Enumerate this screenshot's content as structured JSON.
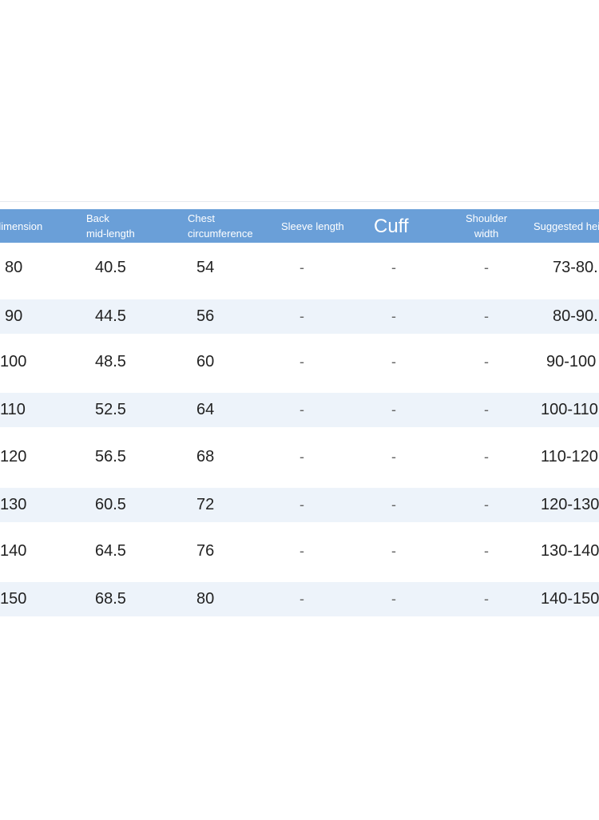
{
  "table": {
    "headers": {
      "dimension": "dimension",
      "back_line1": "Back",
      "back_line2": "mid-length",
      "chest_line1": "Chest",
      "chest_line2": "circumference",
      "sleeve": "Sleeve length",
      "cuff": "Cuff",
      "shoulder_line1": "Shoulder",
      "shoulder_line2": "width",
      "height": "Suggested hei"
    },
    "rows": [
      {
        "dimension": "80",
        "back": "40.5",
        "chest": "54",
        "sleeve": "-",
        "cuff": "-",
        "shoulder": "-",
        "height": "73-80."
      },
      {
        "dimension": "90",
        "back": "44.5",
        "chest": "56",
        "sleeve": "-",
        "cuff": "-",
        "shoulder": "-",
        "height": "80-90."
      },
      {
        "dimension": "100",
        "back": "48.5",
        "chest": "60",
        "sleeve": "-",
        "cuff": "-",
        "shoulder": "-",
        "height": "90-100"
      },
      {
        "dimension": "110",
        "back": "52.5",
        "chest": "64",
        "sleeve": "-",
        "cuff": "-",
        "shoulder": "-",
        "height": "100-110"
      },
      {
        "dimension": "120",
        "back": "56.5",
        "chest": "68",
        "sleeve": "-",
        "cuff": "-",
        "shoulder": "-",
        "height": "110-120"
      },
      {
        "dimension": "130",
        "back": "60.5",
        "chest": "72",
        "sleeve": "-",
        "cuff": "-",
        "shoulder": "-",
        "height": "120-130"
      },
      {
        "dimension": "140",
        "back": "64.5",
        "chest": "76",
        "sleeve": "-",
        "cuff": "-",
        "shoulder": "-",
        "height": "130-140"
      },
      {
        "dimension": "150",
        "back": "68.5",
        "chest": "80",
        "sleeve": "-",
        "cuff": "-",
        "shoulder": "-",
        "height": "140-150"
      }
    ]
  },
  "colors": {
    "header_bg": "#6a9fd8",
    "alt_row_bg": "#edf3fa"
  }
}
